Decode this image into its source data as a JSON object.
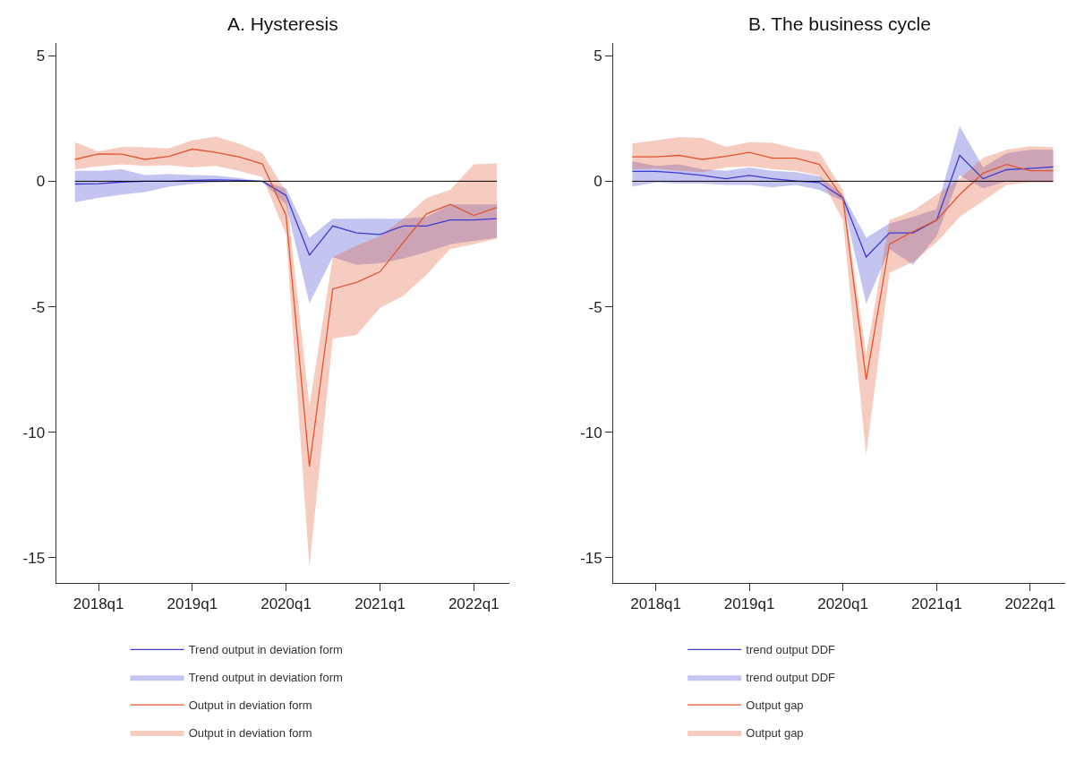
{
  "chart_data": [
    {
      "type": "line",
      "title": "A. Hysteresis",
      "x": [
        "2017-10",
        "2018-01",
        "2018-04",
        "2018-07",
        "2018-10",
        "2019-01",
        "2019-04",
        "2019-07",
        "2019-10",
        "2020-01",
        "2020-04",
        "2020-07",
        "2020-10",
        "2021-01",
        "2021-04",
        "2021-07",
        "2021-10",
        "2022-01",
        "2022-04"
      ],
      "xlim": [
        "2017-07-19",
        "2022-05-18"
      ],
      "xticks": [
        {
          "value": "2018-01",
          "label": "2018q1"
        },
        {
          "value": "2019-01",
          "label": "2019q1"
        },
        {
          "value": "2020-01",
          "label": "2020q1"
        },
        {
          "value": "2021-01",
          "label": "2021q1"
        },
        {
          "value": "2022-01",
          "label": "2022q1"
        }
      ],
      "ylim": [
        -16,
        5.5
      ],
      "yticks": [
        -15,
        -10,
        -5,
        0,
        5
      ],
      "legend": "bottom",
      "marker": "none",
      "line_style": "solid",
      "ref_lines": [
        {
          "axis": "y",
          "value": 0,
          "color": "#000000"
        }
      ],
      "series": [
        {
          "name": "Trend output in deviation form",
          "color": "#3b3bd1",
          "values": [
            -0.11,
            -0.1,
            -0.03,
            0,
            0,
            0.04,
            0.05,
            0.04,
            0,
            -0.56,
            -2.95,
            -1.78,
            -2.06,
            -2.12,
            -1.78,
            -1.78,
            -1.54,
            -1.54,
            -1.49
          ],
          "upper": [
            0.42,
            0.42,
            0.48,
            0.25,
            0.29,
            0.25,
            0.23,
            0.13,
            0,
            -0.28,
            -2.25,
            -1.49,
            -1.49,
            -1.49,
            -1.49,
            -1.42,
            -0.92,
            -0.92,
            -0.92
          ],
          "lower": [
            -0.83,
            -0.66,
            -0.53,
            -0.43,
            -0.22,
            -0.11,
            -0.05,
            -0.03,
            -0.03,
            -0.92,
            -4.86,
            -3.02,
            -3.33,
            -3.27,
            -3.08,
            -2.82,
            -2.51,
            -2.38,
            -2.25
          ]
        },
        {
          "name": "Output in deviation form",
          "color": "#e0562f",
          "values": [
            0.87,
            1.09,
            1.08,
            0.87,
            0.99,
            1.28,
            1.15,
            0.97,
            0.69,
            -1.36,
            -11.37,
            -4.29,
            -4.03,
            -3.61,
            -2.44,
            -1.3,
            -0.92,
            -1.36,
            -1.04
          ],
          "upper": [
            1.56,
            1.18,
            1.37,
            1.35,
            1.31,
            1.63,
            1.78,
            1.5,
            1.12,
            -0.41,
            -8.95,
            -3.02,
            -2.57,
            -2.19,
            -1.49,
            -0.66,
            -0.34,
            0.67,
            0.71
          ],
          "lower": [
            0.48,
            0.59,
            0.67,
            0.61,
            0.64,
            0.55,
            0.61,
            0.42,
            0.17,
            -2.12,
            -15.37,
            -6.26,
            -6.13,
            -5.04,
            -4.57,
            -3.72,
            -2.7,
            -2.51,
            -2.29
          ]
        }
      ]
    },
    {
      "type": "line",
      "title": "B. The business cycle",
      "x": [
        "2017-10",
        "2018-01",
        "2018-04",
        "2018-07",
        "2018-10",
        "2019-01",
        "2019-04",
        "2019-07",
        "2019-10",
        "2020-01",
        "2020-04",
        "2020-07",
        "2020-10",
        "2021-01",
        "2021-04",
        "2021-07",
        "2021-10",
        "2022-01",
        "2022-04"
      ],
      "xlim": [
        "2017-07-19",
        "2022-05-18"
      ],
      "xticks": [
        {
          "value": "2018-01",
          "label": "2018q1"
        },
        {
          "value": "2019-01",
          "label": "2019q1"
        },
        {
          "value": "2020-01",
          "label": "2020q1"
        },
        {
          "value": "2021-01",
          "label": "2021q1"
        },
        {
          "value": "2022-01",
          "label": "2022q1"
        }
      ],
      "ylim": [
        -16,
        5.5
      ],
      "yticks": [
        -15,
        -10,
        -5,
        0,
        5
      ],
      "legend": "bottom",
      "marker": "none",
      "line_style": "solid",
      "ref_lines": [
        {
          "axis": "y",
          "value": 0,
          "color": "#000000"
        }
      ],
      "series": [
        {
          "name": "trend output DDF",
          "color": "#3b3bd1",
          "values": [
            0.39,
            0.39,
            0.33,
            0.23,
            0.1,
            0.23,
            0.1,
            0.01,
            -0.05,
            -0.66,
            -3.02,
            -2.06,
            -2.06,
            -1.55,
            1.03,
            0.1,
            0.46,
            0.51,
            0.57
          ],
          "upper": [
            0.8,
            0.61,
            0.67,
            0.48,
            0.42,
            0.55,
            0.42,
            0.36,
            0.2,
            -0.53,
            -2.25,
            -1.68,
            -1.42,
            -1.11,
            2.2,
            0.55,
            1.12,
            1.25,
            1.25
          ],
          "lower": [
            -0.22,
            -0.05,
            -0.09,
            -0.09,
            -0.15,
            -0.15,
            -0.24,
            -0.15,
            -0.34,
            -0.79,
            -4.88,
            -2.7,
            -3.33,
            -2.19,
            0.23,
            -0.28,
            0,
            0,
            0
          ]
        },
        {
          "name": "Output gap",
          "color": "#e0562f",
          "values": [
            0.97,
            0.97,
            1.03,
            0.87,
            0.99,
            1.15,
            0.92,
            0.92,
            0.67,
            -0.66,
            -7.91,
            -2.51,
            -2.0,
            -1.55,
            -0.53,
            0.32,
            0.67,
            0.42,
            0.42
          ],
          "upper": [
            1.5,
            1.63,
            1.76,
            1.73,
            1.37,
            1.56,
            1.53,
            1.31,
            1.15,
            -0.34,
            -6.92,
            -1.55,
            -1.17,
            -0.53,
            0.1,
            0.93,
            1.25,
            1.4,
            1.35
          ],
          "lower": [
            0.48,
            0.51,
            0.42,
            0.36,
            0.55,
            0.59,
            0.48,
            0.42,
            0.23,
            -1.55,
            -10.92,
            -3.65,
            -3.21,
            -2.44,
            -1.42,
            -0.79,
            -0.15,
            -0.05,
            -0.05
          ]
        }
      ]
    }
  ]
}
